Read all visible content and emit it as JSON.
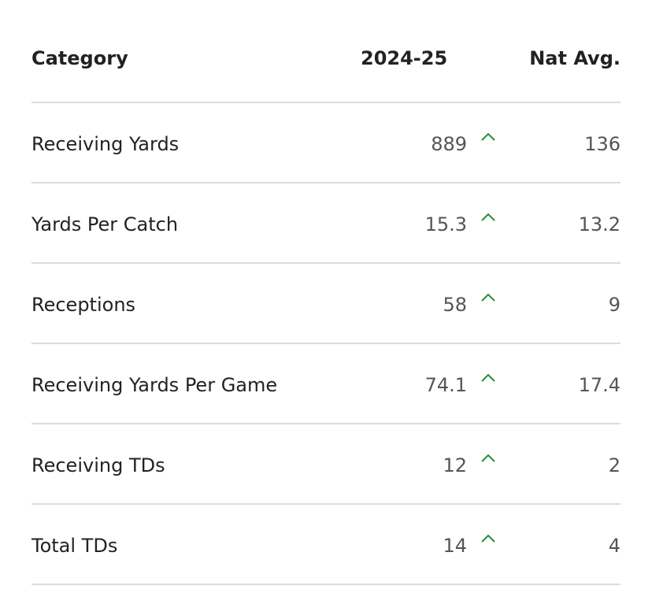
{
  "table": {
    "headers": {
      "category": "Category",
      "season": "2024-25",
      "nat_avg": "Nat Avg."
    },
    "rows": [
      {
        "category": "Receiving Yards",
        "value": "889",
        "trend": "up-caret-icon",
        "nat_avg": "136"
      },
      {
        "category": "Yards Per Catch",
        "value": "15.3",
        "trend": "up-caret-icon",
        "nat_avg": "13.2"
      },
      {
        "category": "Receptions",
        "value": "58",
        "trend": "up-caret-icon",
        "nat_avg": "9"
      },
      {
        "category": "Receiving Yards Per Game",
        "value": "74.1",
        "trend": "up-caret-icon",
        "nat_avg": "17.4"
      },
      {
        "category": "Receiving TDs",
        "value": "12",
        "trend": "up-caret-icon",
        "nat_avg": "2"
      },
      {
        "category": "Total TDs",
        "value": "14",
        "trend": "up-caret-icon",
        "nat_avg": "4"
      }
    ]
  },
  "colors": {
    "trend_up": "#2e8b3a",
    "divider": "#dcdcdc",
    "text_primary": "#222222",
    "text_secondary": "#555555"
  }
}
